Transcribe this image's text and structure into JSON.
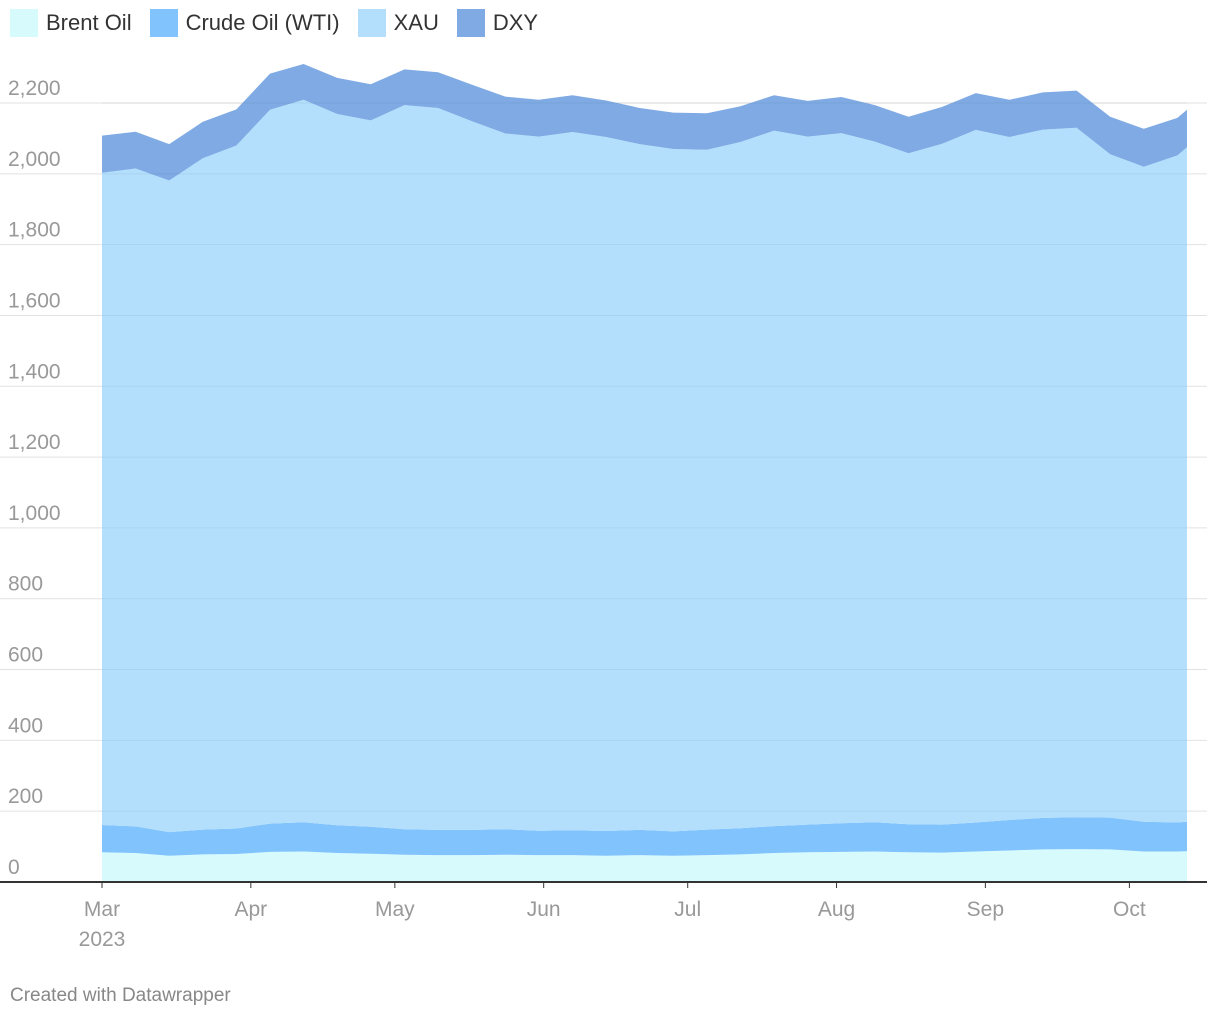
{
  "chart_data": {
    "type": "area",
    "stacked": true,
    "title": "",
    "xlabel": "",
    "ylabel": "",
    "ylim": [
      0,
      2200
    ],
    "y_ticks": [
      0,
      200,
      400,
      600,
      800,
      1000,
      1200,
      1400,
      1600,
      1800,
      2000,
      2200
    ],
    "y_tick_labels": [
      "0",
      "200",
      "400",
      "600",
      "800",
      "1,000",
      "1,200",
      "1,400",
      "1,600",
      "1,800",
      "2,000",
      "2,200"
    ],
    "x_domain": [
      "2023-03-01",
      "2023-10-13"
    ],
    "x_ticks": [
      {
        "date": "2023-03-01",
        "label": "Mar",
        "sublabel": "2023"
      },
      {
        "date": "2023-04-01",
        "label": "Apr",
        "sublabel": ""
      },
      {
        "date": "2023-05-01",
        "label": "May",
        "sublabel": ""
      },
      {
        "date": "2023-06-01",
        "label": "Jun",
        "sublabel": ""
      },
      {
        "date": "2023-07-01",
        "label": "Jul",
        "sublabel": ""
      },
      {
        "date": "2023-08-01",
        "label": "Aug",
        "sublabel": ""
      },
      {
        "date": "2023-09-01",
        "label": "Sep",
        "sublabel": ""
      },
      {
        "date": "2023-10-01",
        "label": "Oct",
        "sublabel": ""
      }
    ],
    "grid": true,
    "legend_position": "top-left",
    "x": [
      "2023-03-01",
      "2023-03-08",
      "2023-03-15",
      "2023-03-22",
      "2023-03-29",
      "2023-04-05",
      "2023-04-12",
      "2023-04-19",
      "2023-04-26",
      "2023-05-03",
      "2023-05-10",
      "2023-05-17",
      "2023-05-24",
      "2023-05-31",
      "2023-06-07",
      "2023-06-14",
      "2023-06-21",
      "2023-06-28",
      "2023-07-05",
      "2023-07-12",
      "2023-07-19",
      "2023-07-26",
      "2023-08-02",
      "2023-08-09",
      "2023-08-16",
      "2023-08-23",
      "2023-08-30",
      "2023-09-06",
      "2023-09-13",
      "2023-09-20",
      "2023-09-27",
      "2023-10-04",
      "2023-10-11",
      "2023-10-13"
    ],
    "series": [
      {
        "name": "Brent Oil",
        "color": "#d7fafd",
        "values": [
          84,
          82,
          74,
          78,
          79,
          85,
          86,
          82,
          80,
          77,
          76,
          76,
          77,
          76,
          76,
          74,
          76,
          74,
          76,
          78,
          82,
          84,
          85,
          86,
          84,
          83,
          86,
          89,
          92,
          93,
          92,
          86,
          86,
          87
        ]
      },
      {
        "name": "Crude Oil (WTI)",
        "color": "#80c3fd",
        "values": [
          77,
          75,
          67,
          70,
          72,
          80,
          83,
          78,
          76,
          72,
          71,
          71,
          72,
          69,
          70,
          70,
          71,
          69,
          72,
          74,
          76,
          78,
          81,
          83,
          79,
          79,
          82,
          86,
          89,
          90,
          90,
          84,
          82,
          83
        ]
      },
      {
        "name": "XAU",
        "color": "#b3dffd",
        "values": [
          1842,
          1858,
          1840,
          1896,
          1929,
          2016,
          2040,
          2009,
          1995,
          2045,
          2039,
          2002,
          1965,
          1960,
          1972,
          1960,
          1937,
          1927,
          1920,
          1938,
          1964,
          1943,
          1949,
          1922,
          1895,
          1923,
          1956,
          1929,
          1944,
          1947,
          1873,
          1850,
          1884,
          1905
        ]
      },
      {
        "name": "DXY",
        "color": "#7faae4",
        "values": [
          105,
          104,
          103,
          103,
          102,
          102,
          101,
          102,
          102,
          101,
          101,
          103,
          104,
          104,
          104,
          103,
          102,
          103,
          103,
          101,
          100,
          101,
          102,
          103,
          103,
          104,
          104,
          105,
          105,
          105,
          106,
          107,
          106,
          106
        ]
      }
    ]
  },
  "footer": {
    "credit": "Created with Datawrapper"
  }
}
